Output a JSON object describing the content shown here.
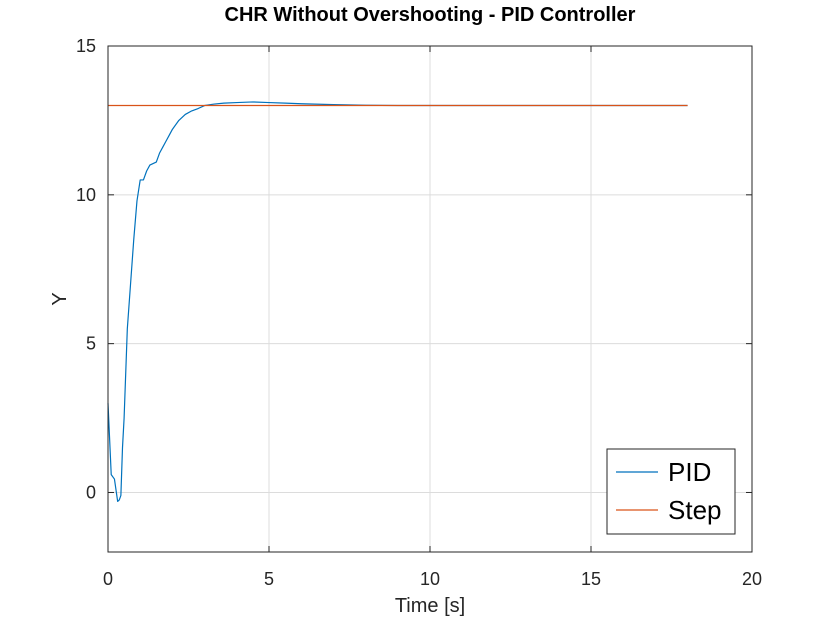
{
  "chart_data": {
    "type": "line",
    "title": "CHR Without Overshooting - PID Controller",
    "xlabel": "Time [s]",
    "ylabel": "Y",
    "xlim": [
      0,
      20
    ],
    "ylim": [
      -2,
      15
    ],
    "xticks": [
      0,
      5,
      10,
      15,
      20
    ],
    "yticks": [
      0,
      5,
      10,
      15
    ],
    "grid": true,
    "legend_position": "bottom-right",
    "series": [
      {
        "name": "PID",
        "color": "#0072BD",
        "x": [
          0,
          0.1,
          0.2,
          0.3,
          0.35,
          0.4,
          0.45,
          0.5,
          0.6,
          0.7,
          0.8,
          0.9,
          1.0,
          1.1,
          1.2,
          1.3,
          1.4,
          1.5,
          1.6,
          1.7,
          1.8,
          1.9,
          2.0,
          2.2,
          2.4,
          2.6,
          2.8,
          3.0,
          3.3,
          3.6,
          4.0,
          4.5,
          5.0,
          5.5,
          6.0,
          7.0,
          8.0,
          9.0,
          10.0,
          12.0,
          14.0,
          16.0,
          18.0
        ],
        "y": [
          3.0,
          0.6,
          0.45,
          -0.3,
          -0.25,
          -0.1,
          1.5,
          2.5,
          5.5,
          7.0,
          8.5,
          9.8,
          10.5,
          10.5,
          10.8,
          11.0,
          11.05,
          11.1,
          11.4,
          11.6,
          11.8,
          12.0,
          12.2,
          12.5,
          12.7,
          12.82,
          12.9,
          13.0,
          13.05,
          13.08,
          13.1,
          13.12,
          13.1,
          13.08,
          13.06,
          13.03,
          13.01,
          13.0,
          13.0,
          13.0,
          13.0,
          13.0,
          13.0
        ]
      },
      {
        "name": "Step",
        "color": "#D95319",
        "x": [
          0,
          18
        ],
        "y": [
          13,
          13
        ]
      }
    ]
  }
}
